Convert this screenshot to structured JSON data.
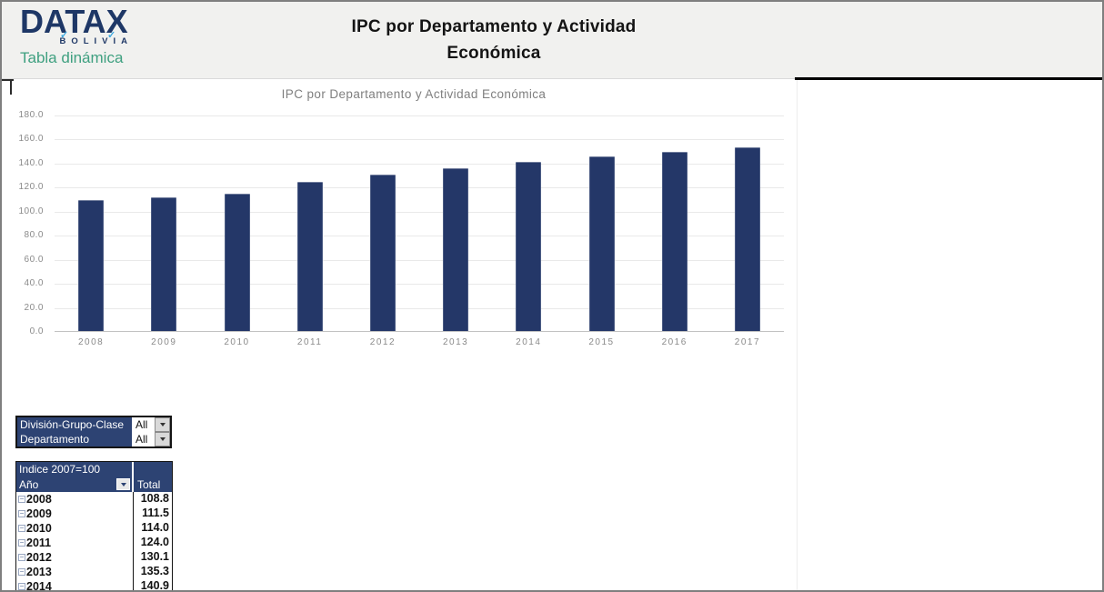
{
  "colors": {
    "bar": "#243768",
    "panel_navy": "#2d4373",
    "brand_navy": "#1e3766",
    "brand_green": "#3fa080",
    "check_blue": "#3fa9e0",
    "header_bg": "#f1f1ef",
    "axis_text": "#8a8a8a",
    "gridline": "#e9e9e9"
  },
  "header": {
    "logo": {
      "brand": "DATAX",
      "country": "BOLIVIA",
      "tagline": "Tabla dinámica",
      "check_icon": "✓"
    },
    "title_line1": "IPC por Departamento y Actividad",
    "title_line2": "Económica"
  },
  "chart_data": {
    "type": "bar",
    "title": "IPC por Departamento y Actividad Económica",
    "categories": [
      "2008",
      "2009",
      "2010",
      "2011",
      "2012",
      "2013",
      "2014",
      "2015",
      "2016",
      "2017"
    ],
    "values": [
      108.8,
      111.5,
      114.0,
      124.0,
      130.1,
      135.3,
      140.9,
      145.5,
      149.0,
      152.5
    ],
    "xlabel": "",
    "ylabel": "",
    "ylim": [
      0,
      180
    ],
    "ytick_step": 20,
    "ytick_format_decimals": 1,
    "grid": true,
    "legend": false,
    "bar_color": "#243768"
  },
  "filters": {
    "rows": [
      {
        "label": "División-Grupo-Clase",
        "value": "All"
      },
      {
        "label": "Departamento",
        "value": "All"
      }
    ]
  },
  "pivot": {
    "title": "Indice 2007=100",
    "row_header": "Año",
    "value_header": "Total",
    "rows": [
      {
        "year": "2008",
        "total": "108.8"
      },
      {
        "year": "2009",
        "total": "111.5"
      },
      {
        "year": "2010",
        "total": "114.0"
      },
      {
        "year": "2011",
        "total": "124.0"
      },
      {
        "year": "2012",
        "total": "130.1"
      },
      {
        "year": "2013",
        "total": "135.3"
      },
      {
        "year": "2014",
        "total": "140.9"
      }
    ]
  }
}
